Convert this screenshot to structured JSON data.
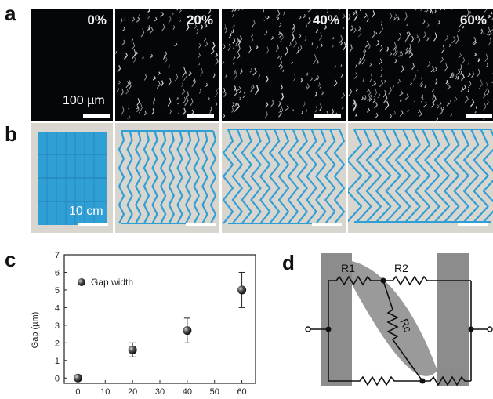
{
  "panel_labels": [
    "a",
    "b",
    "c",
    "d"
  ],
  "row_a": {
    "strains": [
      "0%",
      "20%",
      "40%",
      "60%"
    ],
    "scale_label": "100 µm"
  },
  "row_b": {
    "scale_label": "10 cm"
  },
  "colors": {
    "film": "#2f9fd6",
    "tissue_bg": "#d8d6cf",
    "sem_bg": "#05060a",
    "electrode": "#8c8c8c"
  },
  "chart_data": {
    "type": "scatter",
    "xlabel": "",
    "ylabel": "Gap (µm)",
    "xlim": [
      -5,
      65
    ],
    "ylim": [
      -0.3,
      7
    ],
    "xticks": [
      "0",
      "10",
      "20",
      "30",
      "40",
      "50",
      "60"
    ],
    "yticks": [
      "0",
      "1",
      "2",
      "3",
      "4",
      "5",
      "6",
      "7"
    ],
    "legend_position": "top-left",
    "series": [
      {
        "name": "Gap width",
        "x": [
          0,
          20,
          40,
          60
        ],
        "y": [
          0.0,
          1.6,
          2.7,
          5.0
        ],
        "err": [
          0.0,
          0.4,
          0.7,
          1.0
        ]
      }
    ]
  },
  "circuit": {
    "labels": [
      "R1",
      "R2",
      "Rc",
      "R2",
      "R1"
    ]
  }
}
